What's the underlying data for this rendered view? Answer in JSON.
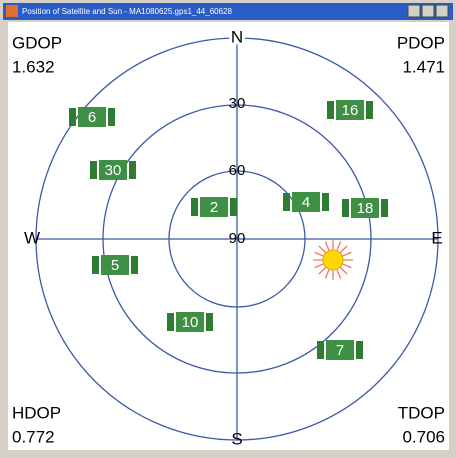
{
  "window": {
    "title": "Position of Satellite and Sun - MA1080625.gps1_44_60628"
  },
  "dop": {
    "gdop": {
      "label": "GDOP",
      "value": "1.632"
    },
    "pdop": {
      "label": "PDOP",
      "value": "1.471"
    },
    "hdop": {
      "label": "HDOP",
      "value": "0.772"
    },
    "tdop": {
      "label": "TDOP",
      "value": "0.706"
    }
  },
  "compass": {
    "n": "N",
    "e": "E",
    "s": "S",
    "w": "W"
  },
  "elevations": [
    "30",
    "60",
    "90"
  ],
  "satellites": [
    "6",
    "16",
    "30",
    "2",
    "4",
    "18",
    "5",
    "10",
    "7"
  ]
}
